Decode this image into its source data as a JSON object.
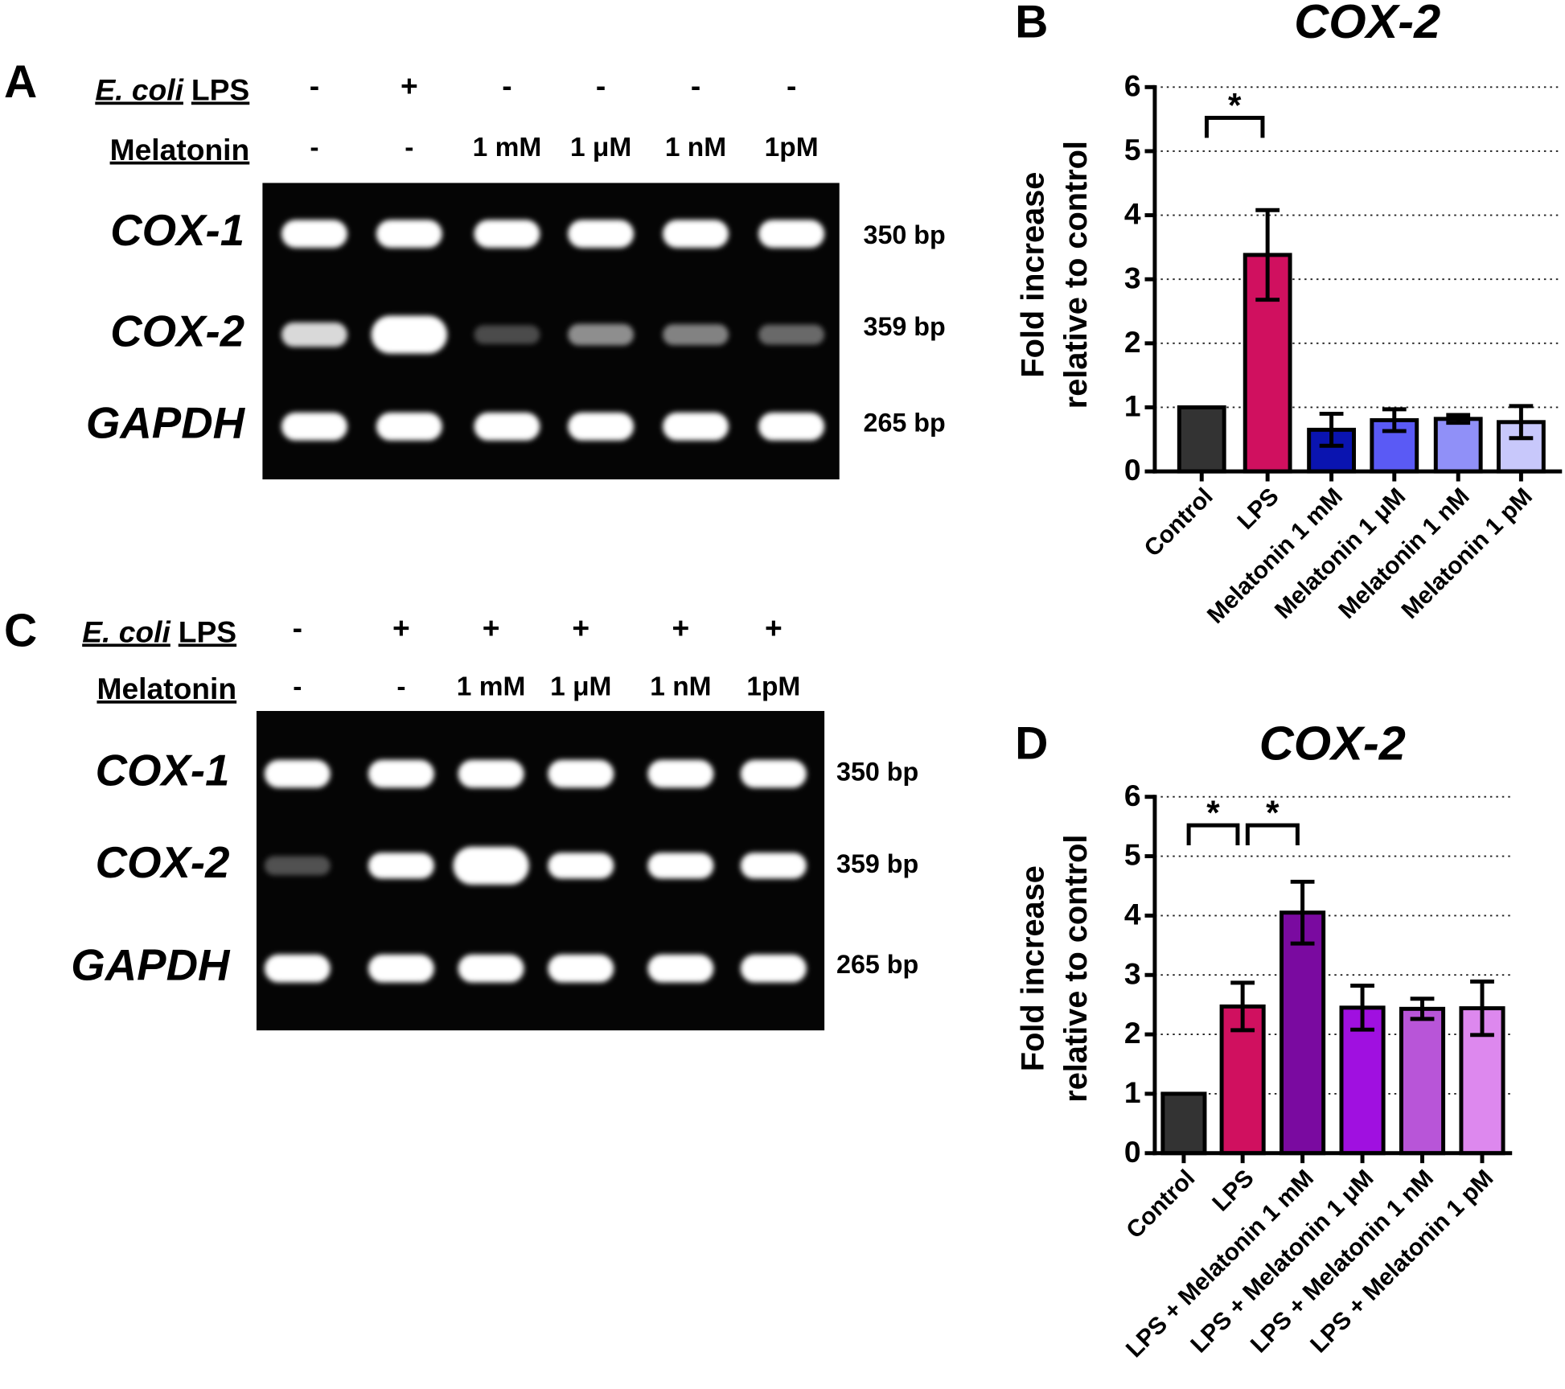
{
  "gels": [
    {
      "panel": "A",
      "lps": {
        "italic": "E. coli",
        "label": "LPS",
        "lanes": [
          "-",
          "+",
          "-",
          "-",
          "-",
          "-"
        ]
      },
      "melatonin": {
        "label": "Melatonin",
        "lanes": [
          "-",
          "-",
          "1 mM",
          "1 μM",
          "1 nM",
          "1pM"
        ]
      },
      "rows": [
        {
          "gene": "COX-1",
          "size": "350 bp"
        },
        {
          "gene": "COX-2",
          "size": "359 bp"
        },
        {
          "gene": "GAPDH",
          "size": "265 bp"
        }
      ]
    },
    {
      "panel": "C",
      "lps": {
        "italic": "E. coli",
        "label": "LPS",
        "lanes": [
          "-",
          "+",
          "+",
          "+",
          "+",
          "+"
        ]
      },
      "melatonin": {
        "label": "Melatonin",
        "lanes": [
          "-",
          "-",
          "1 mM",
          "1 μM",
          "1 nM",
          "1pM"
        ]
      },
      "rows": [
        {
          "gene": "COX-1",
          "size": "350 bp"
        },
        {
          "gene": "COX-2",
          "size": "359 bp"
        },
        {
          "gene": "GAPDH",
          "size": "265 bp"
        }
      ]
    }
  ],
  "chart_data": [
    {
      "type": "bar",
      "panel": "B",
      "title": "COX-2",
      "ylabel": [
        "Fold increase",
        "relative to control"
      ],
      "categories": [
        "Control",
        "LPS",
        "Melatonin 1 mM",
        "Melatonin 1 μM",
        "Melatonin 1 nM",
        "Melatonin 1 pM"
      ],
      "values": [
        1,
        3.38,
        0.65,
        0.8,
        0.82,
        0.77
      ],
      "errors": [
        0,
        0.7,
        0.25,
        0.17,
        0.06,
        0.25
      ],
      "colors": [
        "#333333",
        "#d0105f",
        "#0a14b0",
        "#5a5af5",
        "#9090f8",
        "#c8c8fb"
      ],
      "ylim": [
        0,
        6
      ],
      "yticks": [
        0,
        1,
        2,
        3,
        4,
        5,
        6
      ],
      "grid": true,
      "annotations": [
        {
          "between": [
            "Control",
            "LPS"
          ],
          "text": "*"
        }
      ]
    },
    {
      "type": "bar",
      "panel": "D",
      "title": "COX-2",
      "ylabel": [
        "Fold increase",
        "relative to control"
      ],
      "categories": [
        "Control",
        "LPS",
        "LPS + Melatonin 1 mM",
        "LPS + Melatonin 1 μM",
        "LPS + Melatonin 1 nM",
        "LPS + Melatonin 1 pM"
      ],
      "values": [
        1,
        2.47,
        4.05,
        2.45,
        2.43,
        2.44
      ],
      "errors": [
        0,
        0.4,
        0.52,
        0.37,
        0.17,
        0.45
      ],
      "colors": [
        "#333333",
        "#d0105f",
        "#7a0aa0",
        "#a010e0",
        "#b855d8",
        "#dd88ee"
      ],
      "ylim": [
        0,
        6
      ],
      "yticks": [
        0,
        1,
        2,
        3,
        4,
        5,
        6
      ],
      "grid": true,
      "annotations": [
        {
          "between": [
            "Control",
            "LPS"
          ],
          "text": "*"
        },
        {
          "between": [
            "LPS",
            "LPS + Melatonin 1 mM"
          ],
          "text": "*"
        }
      ]
    }
  ]
}
